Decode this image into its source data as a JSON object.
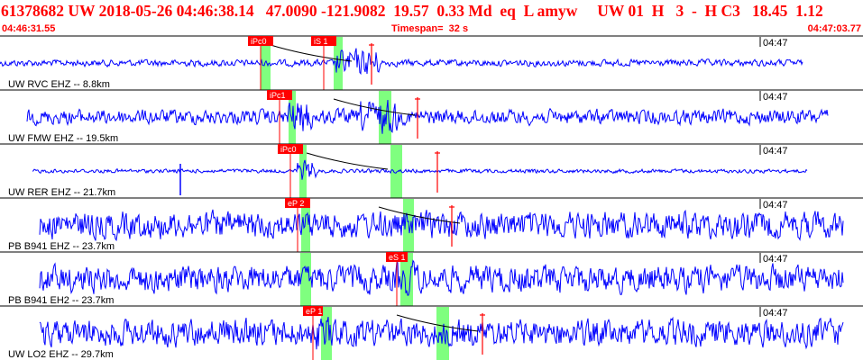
{
  "header": {
    "title": "61378682 UW 2018-05-26 04:46:38.14   47.0090 -121.9082  19.57  0.33 Md  eq  L amyw     UW 01  H   3  -  H C3   18.45  1.12",
    "start_time": "04:46:31.55",
    "timespan": "Timespan=  32 s",
    "end_time": "04:47:03.77"
  },
  "colors": {
    "background": "#ffffff",
    "header_text": "#ff0000",
    "trace": "#0000ff",
    "pick_line": "#ff0000",
    "pick_flag": "#ff0000",
    "green_window": "#7fff7f",
    "separator": "#000000"
  },
  "traces": [
    {
      "station_label": "UW RVC EHZ -- 8.8km",
      "tick_label": "04:47",
      "amplitude": 0.12,
      "picks": [
        "iPc0",
        "iS 1"
      ],
      "green_windows": 2
    },
    {
      "station_label": "UW FMW EHZ -- 19.5km",
      "tick_label": "04:47",
      "amplitude": 0.35,
      "picks": [
        "iPc1"
      ],
      "green_windows": 2
    },
    {
      "station_label": "UW RER EHZ -- 21.7km",
      "tick_label": "04:47",
      "amplitude": 0.04,
      "picks": [
        "iPc0"
      ],
      "green_windows": 2
    },
    {
      "station_label": "PB B941 EHZ -- 23.7km",
      "tick_label": "04:47",
      "amplitude": 0.7,
      "picks": [
        "eP 2"
      ],
      "green_windows": 2
    },
    {
      "station_label": "PB B941 EH2 -- 23.7km",
      "tick_label": "04:47",
      "amplitude": 0.7,
      "picks": [
        "eS 1"
      ],
      "green_windows": 2
    },
    {
      "station_label": "UW LO2 EHZ -- 29.7km",
      "tick_label": "04:47",
      "amplitude": 0.7,
      "picks": [
        "eP 1"
      ],
      "green_windows": 2
    }
  ]
}
